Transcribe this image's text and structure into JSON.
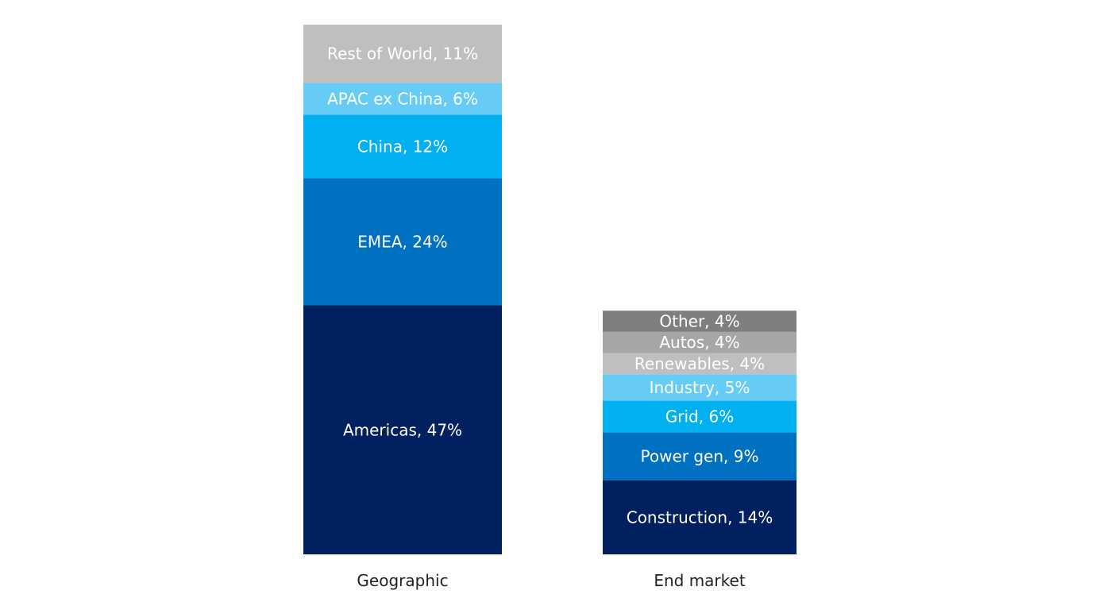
{
  "chart_data": {
    "type": "bar",
    "stacked": true,
    "categories": [
      "Geographic",
      "End market"
    ],
    "series": [
      {
        "category": "Geographic",
        "segments": [
          {
            "label": "Americas, 47%",
            "value": 47,
            "color": "#002060"
          },
          {
            "label": "EMEA, 24%",
            "value": 24,
            "color": "#0070C0"
          },
          {
            "label": "China, 12%",
            "value": 12,
            "color": "#00B0F0"
          },
          {
            "label": "APAC ex China, 6%",
            "value": 6,
            "color": "#66CCF5"
          },
          {
            "label": "Rest of World, 11%",
            "value": 11,
            "color": "#BFBFBF"
          }
        ]
      },
      {
        "category": "End market",
        "segments": [
          {
            "label": "Construction, 14%",
            "value": 14,
            "color": "#002060"
          },
          {
            "label": "Power gen, 9%",
            "value": 9,
            "color": "#0070C0"
          },
          {
            "label": "Grid, 6%",
            "value": 6,
            "color": "#00B0F0"
          },
          {
            "label": "Industry, 5%",
            "value": 5,
            "color": "#66CCF5"
          },
          {
            "label": "Renewables, 4%",
            "value": 4,
            "color": "#BFBFBF"
          },
          {
            "label": "Autos, 4%",
            "value": 4,
            "color": "#A6A6A6"
          },
          {
            "label": "Other, 4%",
            "value": 4,
            "color": "#7F7F7F"
          }
        ]
      }
    ],
    "ylim": [
      0,
      100
    ],
    "grid": false,
    "legend": "none"
  }
}
